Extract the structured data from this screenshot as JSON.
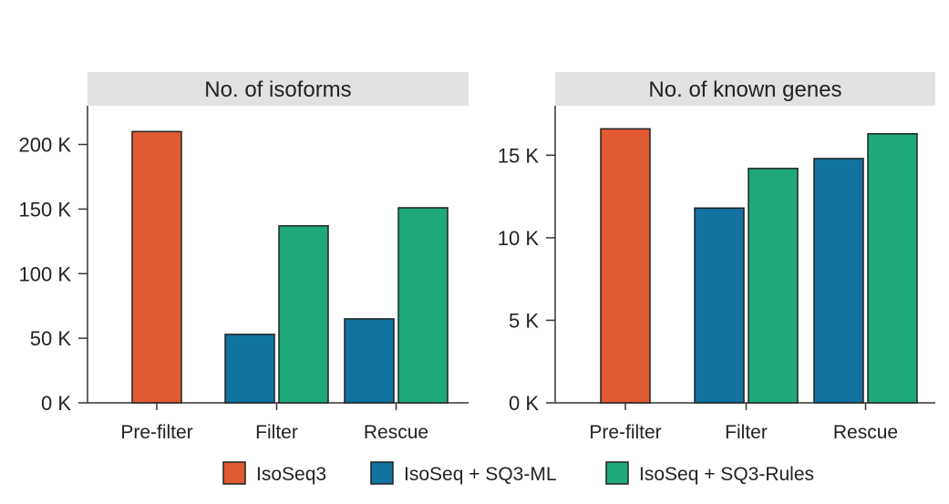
{
  "chart_data": [
    {
      "type": "bar",
      "title": "No. of isoforms",
      "categories": [
        "Pre-filter",
        "Filter",
        "Rescue"
      ],
      "yticks": [
        0,
        50000,
        100000,
        150000,
        200000
      ],
      "ytick_labels": [
        "0 K",
        "50 K",
        "100 K",
        "150 K",
        "200 K"
      ],
      "ylim": [
        0,
        230000
      ],
      "series": [
        {
          "name": "IsoSeq3",
          "color": "#e05a33",
          "values": [
            210000,
            null,
            null
          ]
        },
        {
          "name": "IsoSeq + SQ3-ML",
          "color": "#1272a0",
          "values": [
            null,
            53000,
            65000
          ]
        },
        {
          "name": "IsoSeq + SQ3-Rules",
          "color": "#1fa97a",
          "values": [
            null,
            137000,
            151000
          ]
        }
      ]
    },
    {
      "type": "bar",
      "title": "No. of known genes",
      "categories": [
        "Pre-filter",
        "Filter",
        "Rescue"
      ],
      "yticks": [
        0,
        5000,
        10000,
        15000
      ],
      "ytick_labels": [
        "0 K",
        "5 K",
        "10 K",
        "15 K"
      ],
      "ylim": [
        0,
        18000
      ],
      "series": [
        {
          "name": "IsoSeq3",
          "color": "#e05a33",
          "values": [
            16600,
            null,
            null
          ]
        },
        {
          "name": "IsoSeq + SQ3-ML",
          "color": "#1272a0",
          "values": [
            null,
            11800,
            14800
          ]
        },
        {
          "name": "IsoSeq + SQ3-Rules",
          "color": "#1fa97a",
          "values": [
            null,
            14200,
            16300
          ]
        }
      ]
    }
  ],
  "legend": [
    {
      "label": "IsoSeq3",
      "color": "#e05a33"
    },
    {
      "label": "IsoSeq + SQ3-ML",
      "color": "#1272a0"
    },
    {
      "label": "IsoSeq + SQ3-Rules",
      "color": "#1fa97a"
    }
  ],
  "colors": {
    "title_band": "#e2e2e2",
    "axis": "#333333",
    "bar_outline": "#222222"
  }
}
